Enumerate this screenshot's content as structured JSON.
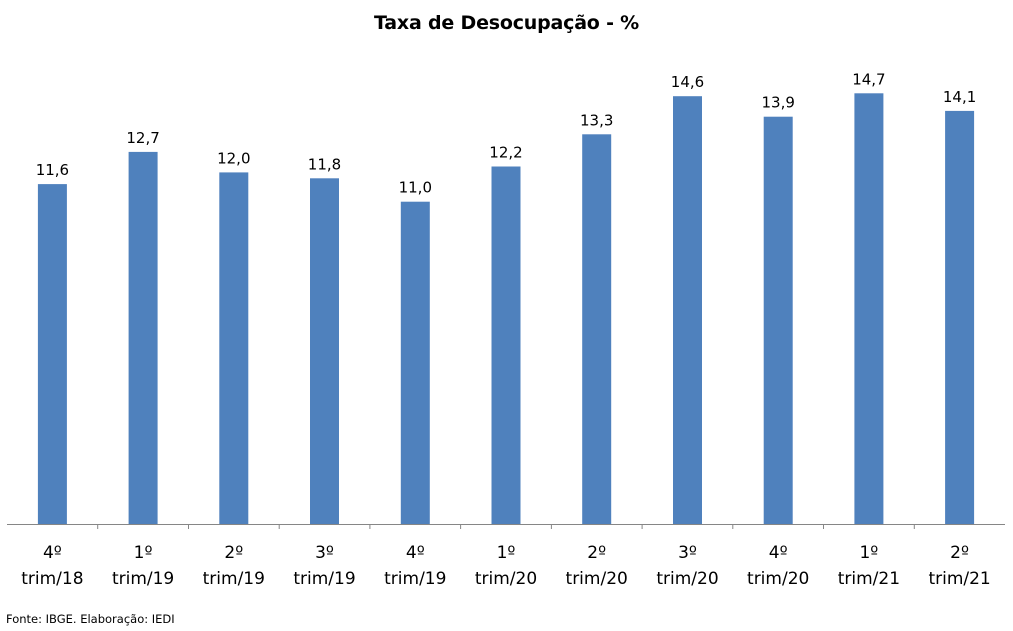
{
  "chart_data": {
    "type": "bar",
    "title": "Taxa de Desocupação - %",
    "categories": [
      [
        "4º",
        "trim/18"
      ],
      [
        "1º",
        "trim/19"
      ],
      [
        "2º",
        "trim/19"
      ],
      [
        "3º",
        "trim/19"
      ],
      [
        "4º",
        "trim/19"
      ],
      [
        "1º",
        "trim/20"
      ],
      [
        "2º",
        "trim/20"
      ],
      [
        "3º",
        "trim/20"
      ],
      [
        "4º",
        "trim/20"
      ],
      [
        "1º",
        "trim/21"
      ],
      [
        "2º",
        "trim/21"
      ]
    ],
    "values": [
      11.6,
      12.7,
      12.0,
      11.8,
      11.0,
      12.2,
      13.3,
      14.6,
      13.9,
      14.7,
      14.1
    ],
    "data_labels": [
      "11,6",
      "12,7",
      "12,0",
      "11,8",
      "11,0",
      "12,2",
      "13,3",
      "14,6",
      "13,9",
      "14,7",
      "14,1"
    ],
    "xlabel": "",
    "ylabel": "",
    "ylim": [
      0,
      15
    ],
    "grid": false,
    "bar_color": "#4F81BD",
    "axis_color": "#868686"
  },
  "source": "Fonte: IBGE. Elaboração: IEDI"
}
